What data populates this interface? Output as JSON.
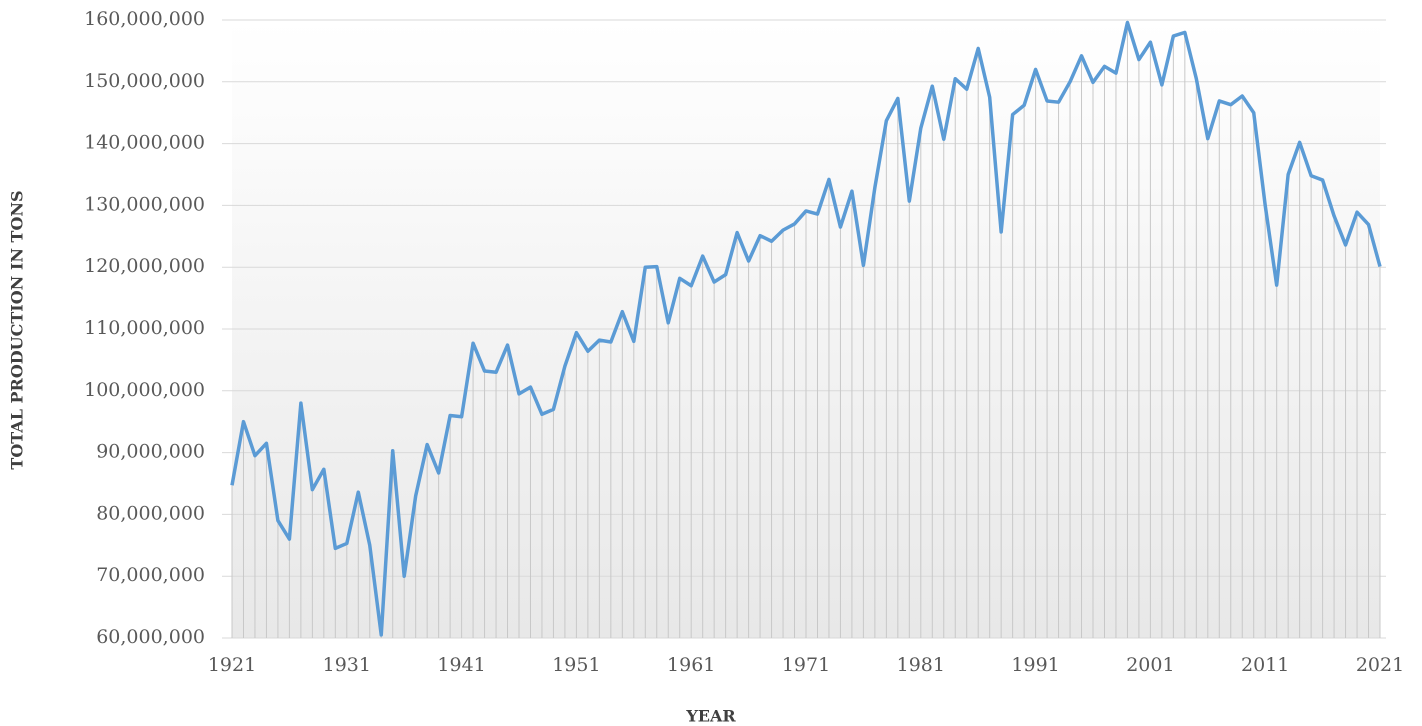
{
  "chart_data": {
    "type": "line",
    "y_label": "TOTAL PRODUCTION IN TONS",
    "x_label": "YEAR",
    "x": [
      1921,
      1922,
      1923,
      1924,
      1925,
      1926,
      1927,
      1928,
      1929,
      1930,
      1931,
      1932,
      1933,
      1934,
      1935,
      1936,
      1937,
      1938,
      1939,
      1940,
      1941,
      1942,
      1943,
      1944,
      1945,
      1946,
      1947,
      1948,
      1949,
      1950,
      1951,
      1952,
      1953,
      1954,
      1955,
      1956,
      1957,
      1958,
      1959,
      1960,
      1961,
      1962,
      1963,
      1964,
      1965,
      1966,
      1967,
      1968,
      1969,
      1970,
      1971,
      1972,
      1973,
      1974,
      1975,
      1976,
      1977,
      1978,
      1979,
      1980,
      1981,
      1982,
      1983,
      1984,
      1985,
      1986,
      1987,
      1988,
      1989,
      1990,
      1991,
      1992,
      1993,
      1994,
      1995,
      1996,
      1997,
      1998,
      1999,
      2000,
      2001,
      2002,
      2003,
      2004,
      2005,
      2006,
      2007,
      2008,
      2009,
      2010,
      2011,
      2012,
      2013,
      2014,
      2015,
      2016,
      2017,
      2018,
      2019,
      2020,
      2021
    ],
    "series": [
      {
        "color": "#5b9bd5",
        "values": [
          84700000,
          95000000,
          89500000,
          91500000,
          79000000,
          76000000,
          98000000,
          84000000,
          87300000,
          74500000,
          75300000,
          83600000,
          75000000,
          60500000,
          90300000,
          70000000,
          83000000,
          91300000,
          86700000,
          96000000,
          95800000,
          107700000,
          103200000,
          103000000,
          107400000,
          99500000,
          100600000,
          96200000,
          97000000,
          104000000,
          109400000,
          106400000,
          108200000,
          107900000,
          112800000,
          108000000,
          120000000,
          120100000,
          111000000,
          118200000,
          117000000,
          121800000,
          117600000,
          118800000,
          125600000,
          121000000,
          125100000,
          124200000,
          126000000,
          127000000,
          129100000,
          128600000,
          134200000,
          126500000,
          132300000,
          120300000,
          132900000,
          143700000,
          147300000,
          130700000,
          142500000,
          149300000,
          140700000,
          150500000,
          148800000,
          155400000,
          147500000,
          125700000,
          144700000,
          146200000,
          152000000,
          146900000,
          146700000,
          150000000,
          154200000,
          149900000,
          152500000,
          151400000,
          159600000,
          153600000,
          156400000,
          149500000,
          157400000,
          158000000,
          150500000,
          140800000,
          146900000,
          146300000,
          147700000,
          145000000,
          130000000,
          117100000,
          135000000,
          140200000,
          134800000,
          134100000,
          128300000,
          123600000,
          128900000,
          126900000,
          120100000
        ]
      }
    ],
    "xlim": [
      1921,
      2021
    ],
    "xticks": [
      1921,
      1931,
      1941,
      1951,
      1961,
      1971,
      1981,
      1991,
      2001,
      2011,
      2021
    ],
    "ylim": [
      60000000,
      160000000
    ],
    "yticks": [
      {
        "value": 60000000,
        "label": "60,000,000"
      },
      {
        "value": 70000000,
        "label": "70,000,000"
      },
      {
        "value": 80000000,
        "label": "80,000,000"
      },
      {
        "value": 90000000,
        "label": "90,000,000"
      },
      {
        "value": 100000000,
        "label": "100,000,000"
      },
      {
        "value": 110000000,
        "label": "110,000,000"
      },
      {
        "value": 120000000,
        "label": "120,000,000"
      },
      {
        "value": 130000000,
        "label": "130,000,000"
      },
      {
        "value": 140000000,
        "label": "140,000,000"
      },
      {
        "value": 150000000,
        "label": "150,000,000"
      },
      {
        "value": 160000000,
        "label": "160,000,000"
      }
    ],
    "grid": true,
    "drop_lines": true
  }
}
